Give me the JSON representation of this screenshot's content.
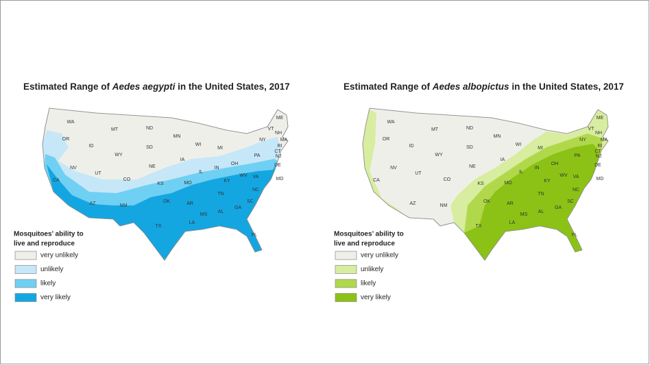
{
  "maps": [
    {
      "title": {
        "before": "Estimated Range of ",
        "species": "Aedes aegypti",
        "after": " in the United States, 2017"
      },
      "state_labels": [
        "WA",
        "MT",
        "ND",
        "MN",
        "ME",
        "OR",
        "ID",
        "WY",
        "SD",
        "WI",
        "MI",
        "NY",
        "VT",
        "NH",
        "MA",
        "RI",
        "CT",
        "NJ",
        "DE",
        "MD",
        "NV",
        "UT",
        "CO",
        "NE",
        "IA",
        "IL",
        "IN",
        "OH",
        "PA",
        "CA",
        "KS",
        "MO",
        "KY",
        "WV",
        "VA",
        "NC",
        "TN",
        "AR",
        "OK",
        "AZ",
        "NM",
        "SC",
        "MS",
        "AL",
        "GA",
        "LA",
        "TX",
        "FL"
      ],
      "legend": {
        "title_lines": [
          "Mosquitoes’ ability to",
          "live and reproduce"
        ],
        "items": [
          {
            "label": "very unlikely",
            "color": "#efefea"
          },
          {
            "label": "unlikely",
            "color": "#c6e7f8"
          },
          {
            "label": "likely",
            "color": "#6fd0f3"
          },
          {
            "label": "very likely",
            "color": "#14a6e1"
          }
        ]
      }
    },
    {
      "title": {
        "before": "Estimated Range of ",
        "species": "Aedes albopictus",
        "after": " in the United States, 2017"
      },
      "state_labels": [
        "WA",
        "MT",
        "ND",
        "MN",
        "ME",
        "OR",
        "ID",
        "WY",
        "SD",
        "WI",
        "MI",
        "NY",
        "VT",
        "NH",
        "MA",
        "RI",
        "CT",
        "NJ",
        "DE",
        "MD",
        "NV",
        "UT",
        "CO",
        "NE",
        "IA",
        "IL",
        "IN",
        "OH",
        "PA",
        "CA",
        "KS",
        "MO",
        "KY",
        "WV",
        "VA",
        "NC",
        "TN",
        "AR",
        "OK",
        "AZ",
        "NM",
        "SC",
        "MS",
        "AL",
        "GA",
        "LA",
        "TX",
        "FL"
      ],
      "legend": {
        "title_lines": [
          "Mosquitoes’ ability to",
          "live and reproduce"
        ],
        "items": [
          {
            "label": "very unlikely",
            "color": "#efefea"
          },
          {
            "label": "unlikely",
            "color": "#d8eda0"
          },
          {
            "label": "likely",
            "color": "#b1d84b"
          },
          {
            "label": "very likely",
            "color": "#8bc215"
          }
        ]
      }
    }
  ]
}
